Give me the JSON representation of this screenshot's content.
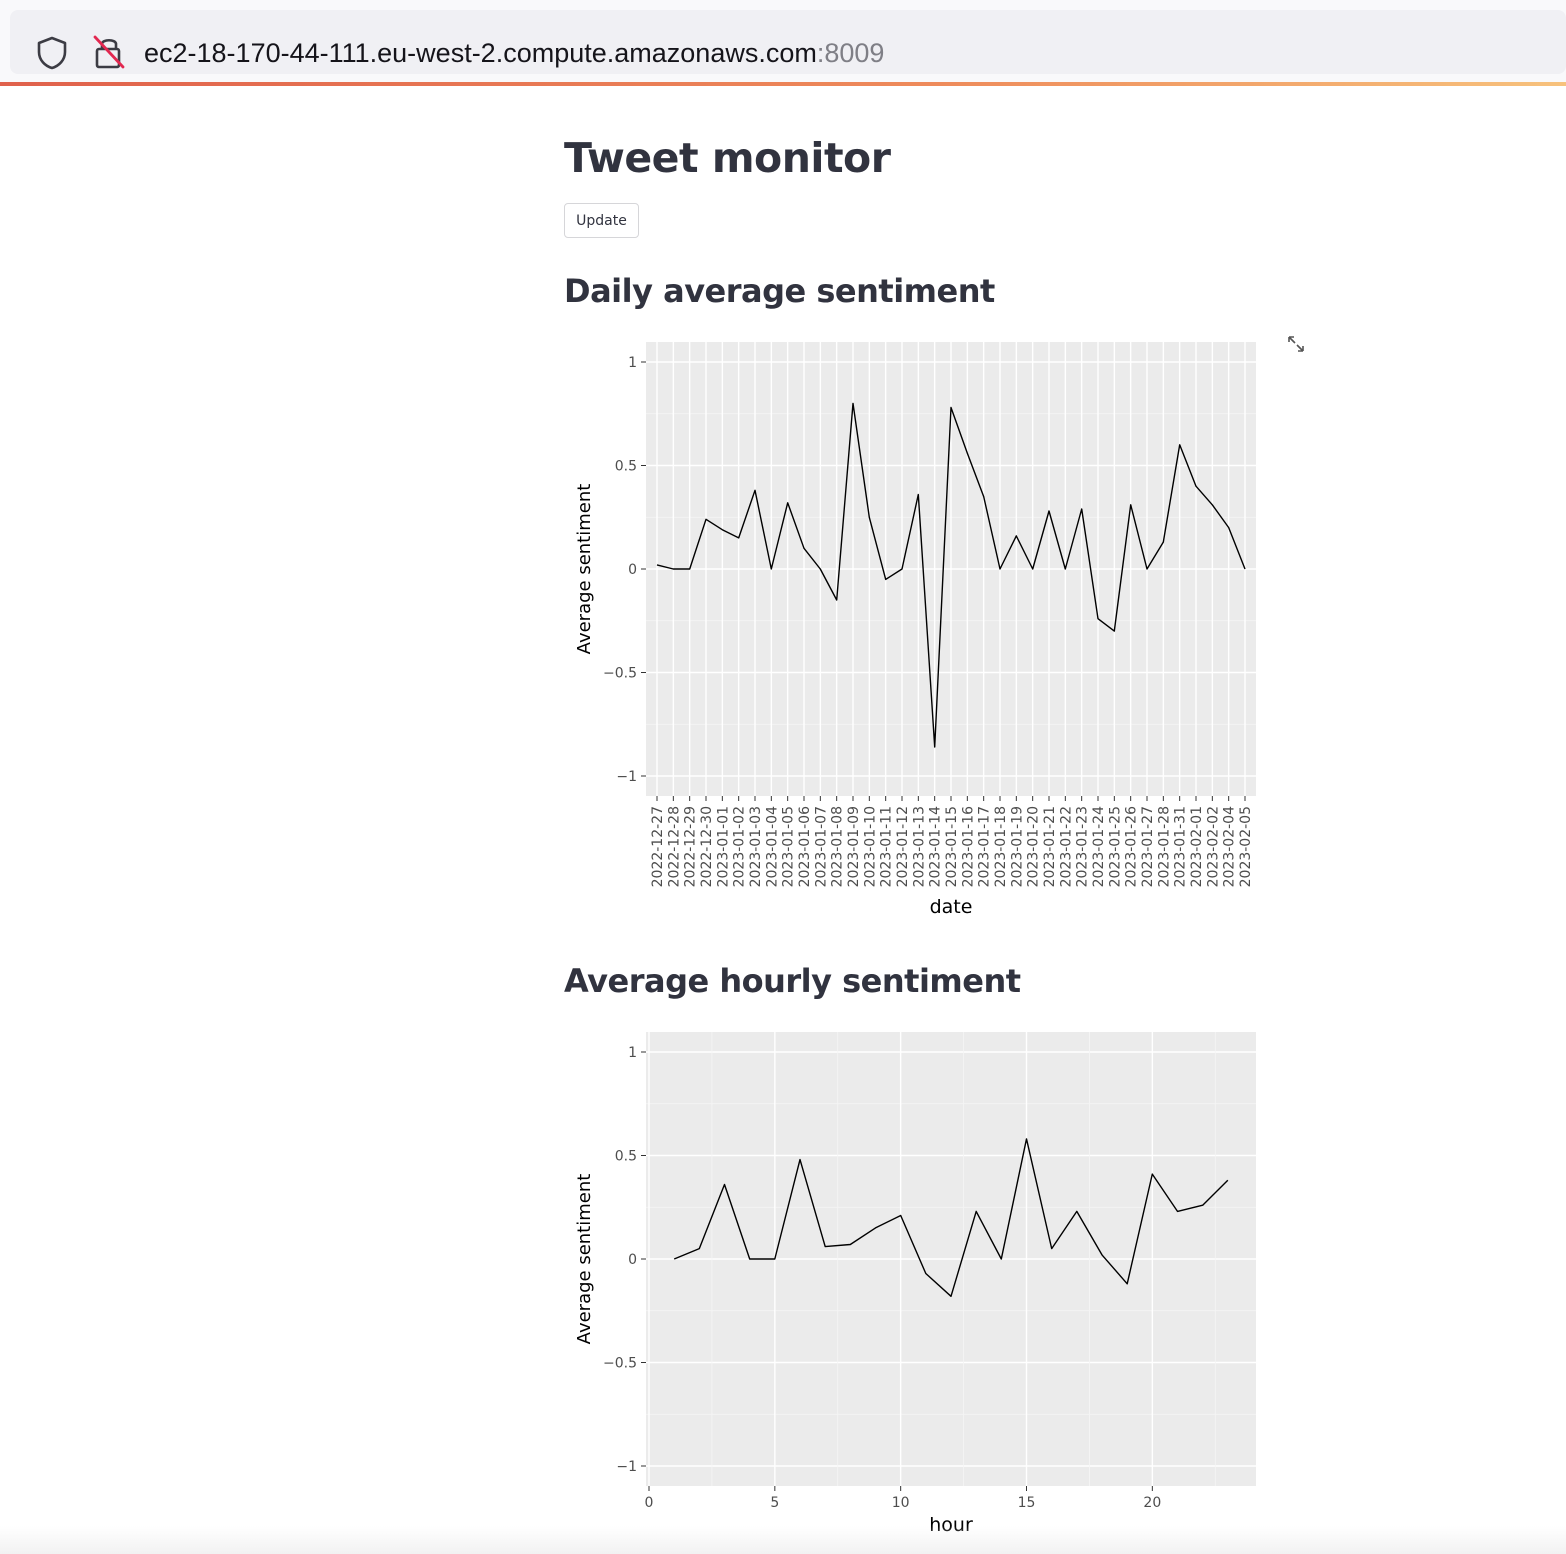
{
  "browser": {
    "url_host": "ec2-18-170-44-111.eu-west-2.compute.amazonaws.com",
    "url_port": ":8009",
    "icons": [
      "shield-icon",
      "insecure-lock-icon"
    ]
  },
  "page": {
    "title": "Tweet monitor",
    "update_label": "Update",
    "daily_heading": "Daily average sentiment",
    "hourly_heading": "Average hourly sentiment",
    "fullscreen_icon": "fullscreen-expand-icon"
  },
  "chart_data": [
    {
      "type": "line",
      "xlabel": "date",
      "ylabel": "Average sentiment",
      "ylim": [
        -1,
        1
      ],
      "yticks": [
        1,
        0.5,
        0,
        -0.5,
        -1
      ],
      "ytick_labels": [
        "1",
        "0.5",
        "0",
        "−0.5",
        "−1"
      ],
      "grid": true,
      "categories": [
        "2022-12-27",
        "2022-12-28",
        "2022-12-29",
        "2022-12-30",
        "2023-01-01",
        "2023-01-02",
        "2023-01-03",
        "2023-01-04",
        "2023-01-05",
        "2023-01-06",
        "2023-01-07",
        "2023-01-08",
        "2023-01-09",
        "2023-01-10",
        "2023-01-11",
        "2023-01-12",
        "2023-01-13",
        "2023-01-14",
        "2023-01-15",
        "2023-01-16",
        "2023-01-17",
        "2023-01-18",
        "2023-01-19",
        "2023-01-20",
        "2023-01-21",
        "2023-01-22",
        "2023-01-23",
        "2023-01-24",
        "2023-01-25",
        "2023-01-26",
        "2023-01-27",
        "2023-01-28",
        "2023-01-31",
        "2023-02-01",
        "2023-02-02",
        "2023-02-04",
        "2023-02-05"
      ],
      "values": [
        0.02,
        0.0,
        0.0,
        0.24,
        0.19,
        0.15,
        0.38,
        0.0,
        0.32,
        0.1,
        0.0,
        -0.15,
        0.8,
        0.25,
        -0.05,
        0.0,
        0.36,
        -0.86,
        0.78,
        0.56,
        0.35,
        0.0,
        0.16,
        0.0,
        0.28,
        0.0,
        0.29,
        -0.24,
        -0.3,
        0.31,
        0.0,
        0.13,
        0.6,
        0.4,
        0.31,
        0.2,
        0.0
      ]
    },
    {
      "type": "line",
      "xlabel": "hour",
      "ylabel": "Average sentiment",
      "ylim": [
        -1,
        1
      ],
      "xlim": [
        0,
        24
      ],
      "yticks": [
        1,
        0.5,
        0,
        -0.5,
        -1
      ],
      "ytick_labels": [
        "1",
        "0.5",
        "0",
        "−0.5",
        "−1"
      ],
      "xticks": [
        0,
        5,
        10,
        15,
        20
      ],
      "xtick_labels": [
        "0",
        "5",
        "10",
        "15",
        "20"
      ],
      "grid": true,
      "x": [
        1,
        2,
        3,
        4,
        5,
        6,
        7,
        8,
        9,
        10,
        11,
        12,
        13,
        14,
        15,
        16,
        17,
        18,
        19,
        20,
        21,
        22,
        23
      ],
      "values": [
        0.0,
        0.05,
        0.36,
        0.0,
        0.0,
        0.48,
        0.06,
        0.07,
        0.15,
        0.21,
        -0.07,
        -0.18,
        0.23,
        0.0,
        0.58,
        0.05,
        0.23,
        0.02,
        -0.12,
        0.41,
        0.23,
        0.26,
        0.38
      ]
    }
  ]
}
